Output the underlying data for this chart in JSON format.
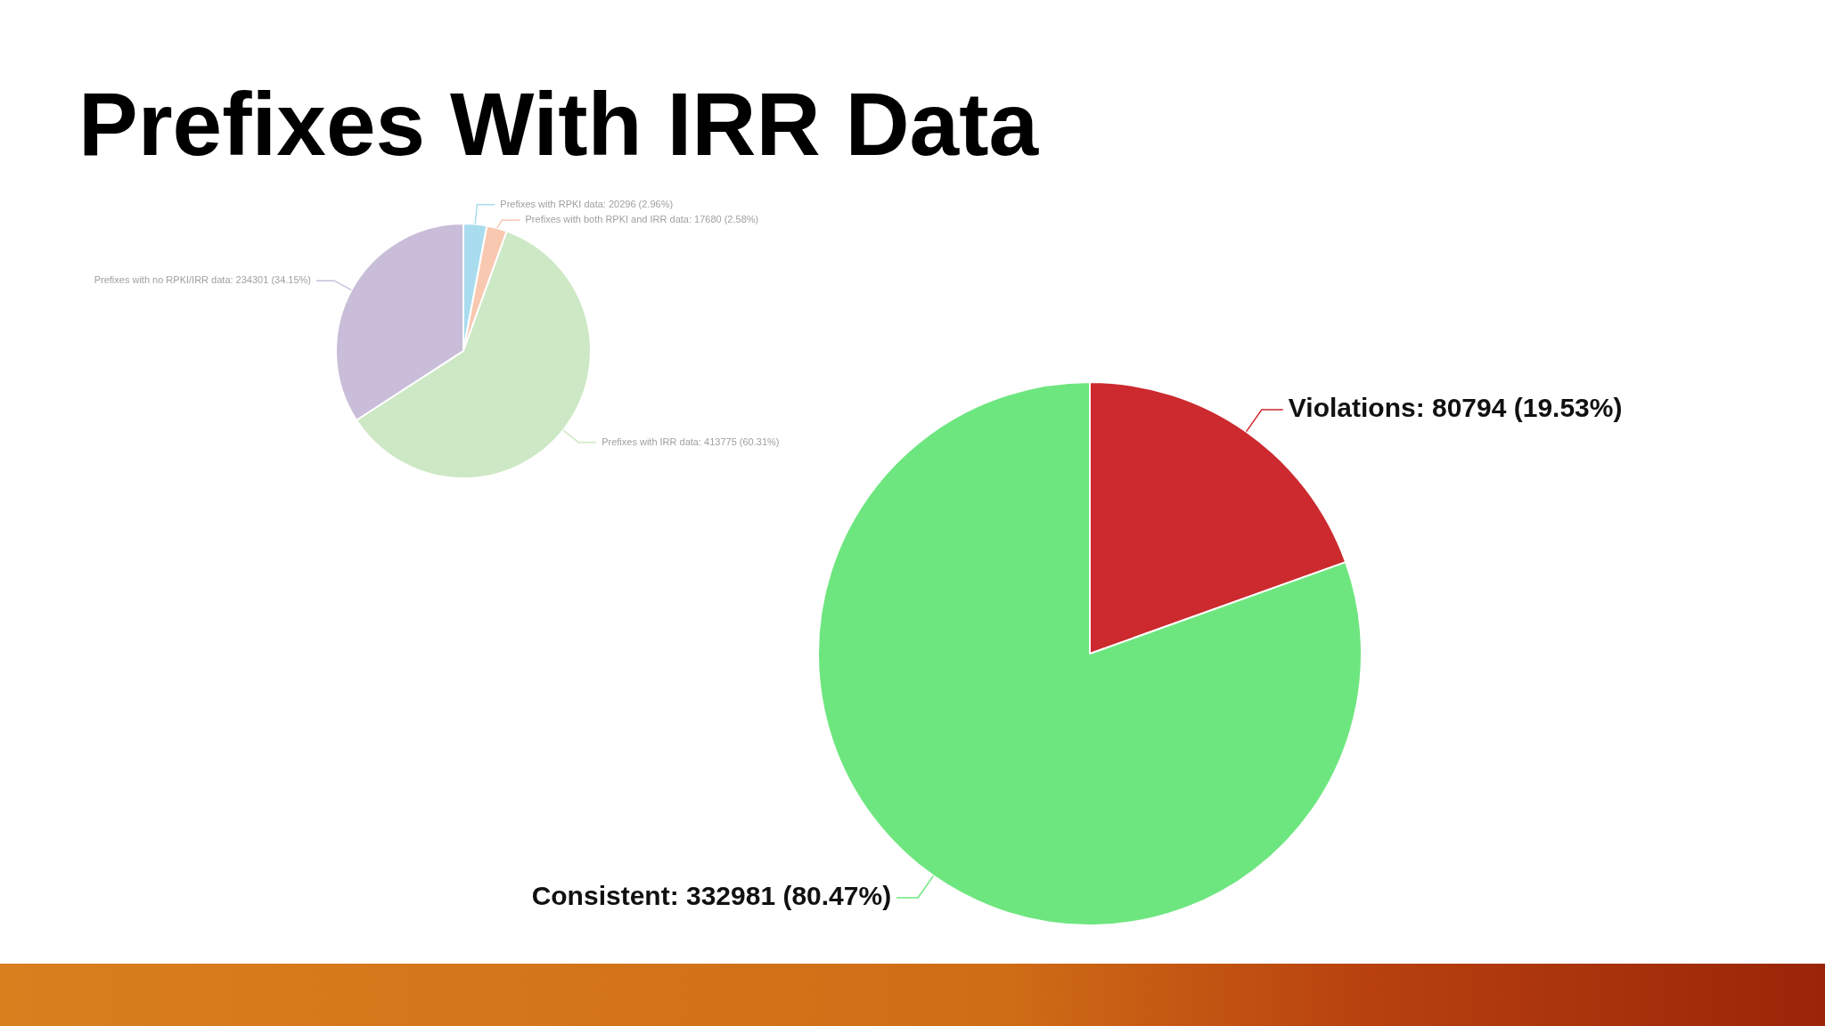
{
  "chart_data": [
    {
      "type": "pie",
      "title": "Prefixes With IRR Data",
      "categories": [
        "Prefixes with RPKI data",
        "Prefixes with both RPKI and IRR data",
        "Prefixes with IRR data",
        "Prefixes with no RPKI/IRR data"
      ],
      "values": [
        20296,
        17680,
        413775,
        234301
      ],
      "value_labels": [
        "20296 (2.96%)",
        "17680 (2.58%)",
        "413775 (60.31%)",
        "234301 (34.15%)"
      ],
      "colors": [
        "#a9dcee",
        "#f8c8b0",
        "#cde8c4",
        "#c9bdd9"
      ],
      "legend": false
    },
    {
      "type": "pie",
      "categories": [
        "Violations",
        "Consistent"
      ],
      "values": [
        80794,
        332981
      ],
      "value_labels": [
        "80794 (19.53%)",
        "332981 (80.47%)"
      ],
      "colors": [
        "#cc2a2e",
        "#6ee67f"
      ],
      "legend": false
    }
  ]
}
